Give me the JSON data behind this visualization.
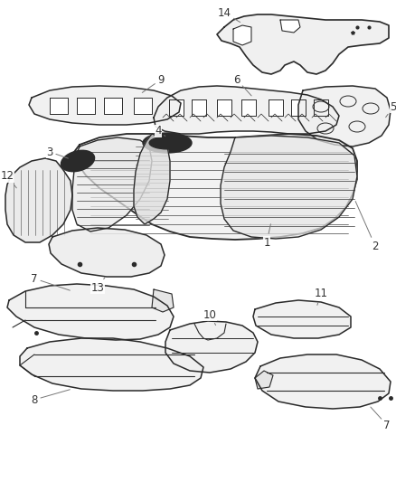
{
  "bg_color": "#ffffff",
  "line_color": "#2a2a2a",
  "label_color": "#333333",
  "label_fontsize": 8.5,
  "figsize": [
    4.38,
    5.33
  ],
  "dpi": 100
}
